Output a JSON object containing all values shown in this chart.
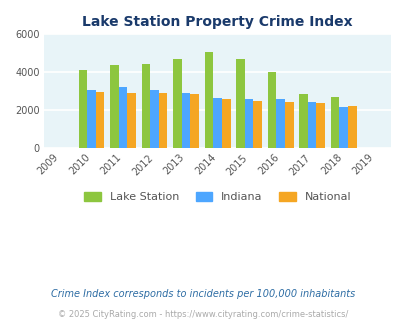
{
  "title": "Lake Station Property Crime Index",
  "all_years": [
    2009,
    2010,
    2011,
    2012,
    2013,
    2014,
    2015,
    2016,
    2017,
    2018,
    2019
  ],
  "bar_years": [
    2010,
    2011,
    2012,
    2013,
    2014,
    2015,
    2016,
    2017,
    2018
  ],
  "lake_station": [
    4100,
    4350,
    4450,
    4680,
    5080,
    4680,
    4000,
    2820,
    2700
  ],
  "indiana": [
    3050,
    3200,
    3050,
    2870,
    2620,
    2580,
    2580,
    2400,
    2150
  ],
  "national": [
    2960,
    2900,
    2870,
    2820,
    2580,
    2460,
    2420,
    2360,
    2200
  ],
  "color_lake_station": "#8dc63f",
  "color_indiana": "#4da6ff",
  "color_national": "#f5a623",
  "ylim": [
    0,
    6000
  ],
  "yticks": [
    0,
    2000,
    4000,
    6000
  ],
  "background_color": "#e8f4f8",
  "grid_color": "#ffffff",
  "legend_labels": [
    "Lake Station",
    "Indiana",
    "National"
  ],
  "footnote1": "Crime Index corresponds to incidents per 100,000 inhabitants",
  "footnote2": "© 2025 CityRating.com - https://www.cityrating.com/crime-statistics/",
  "title_color": "#1a3a6b",
  "footnote1_color": "#2e6da4",
  "footnote2_color": "#aaaaaa"
}
